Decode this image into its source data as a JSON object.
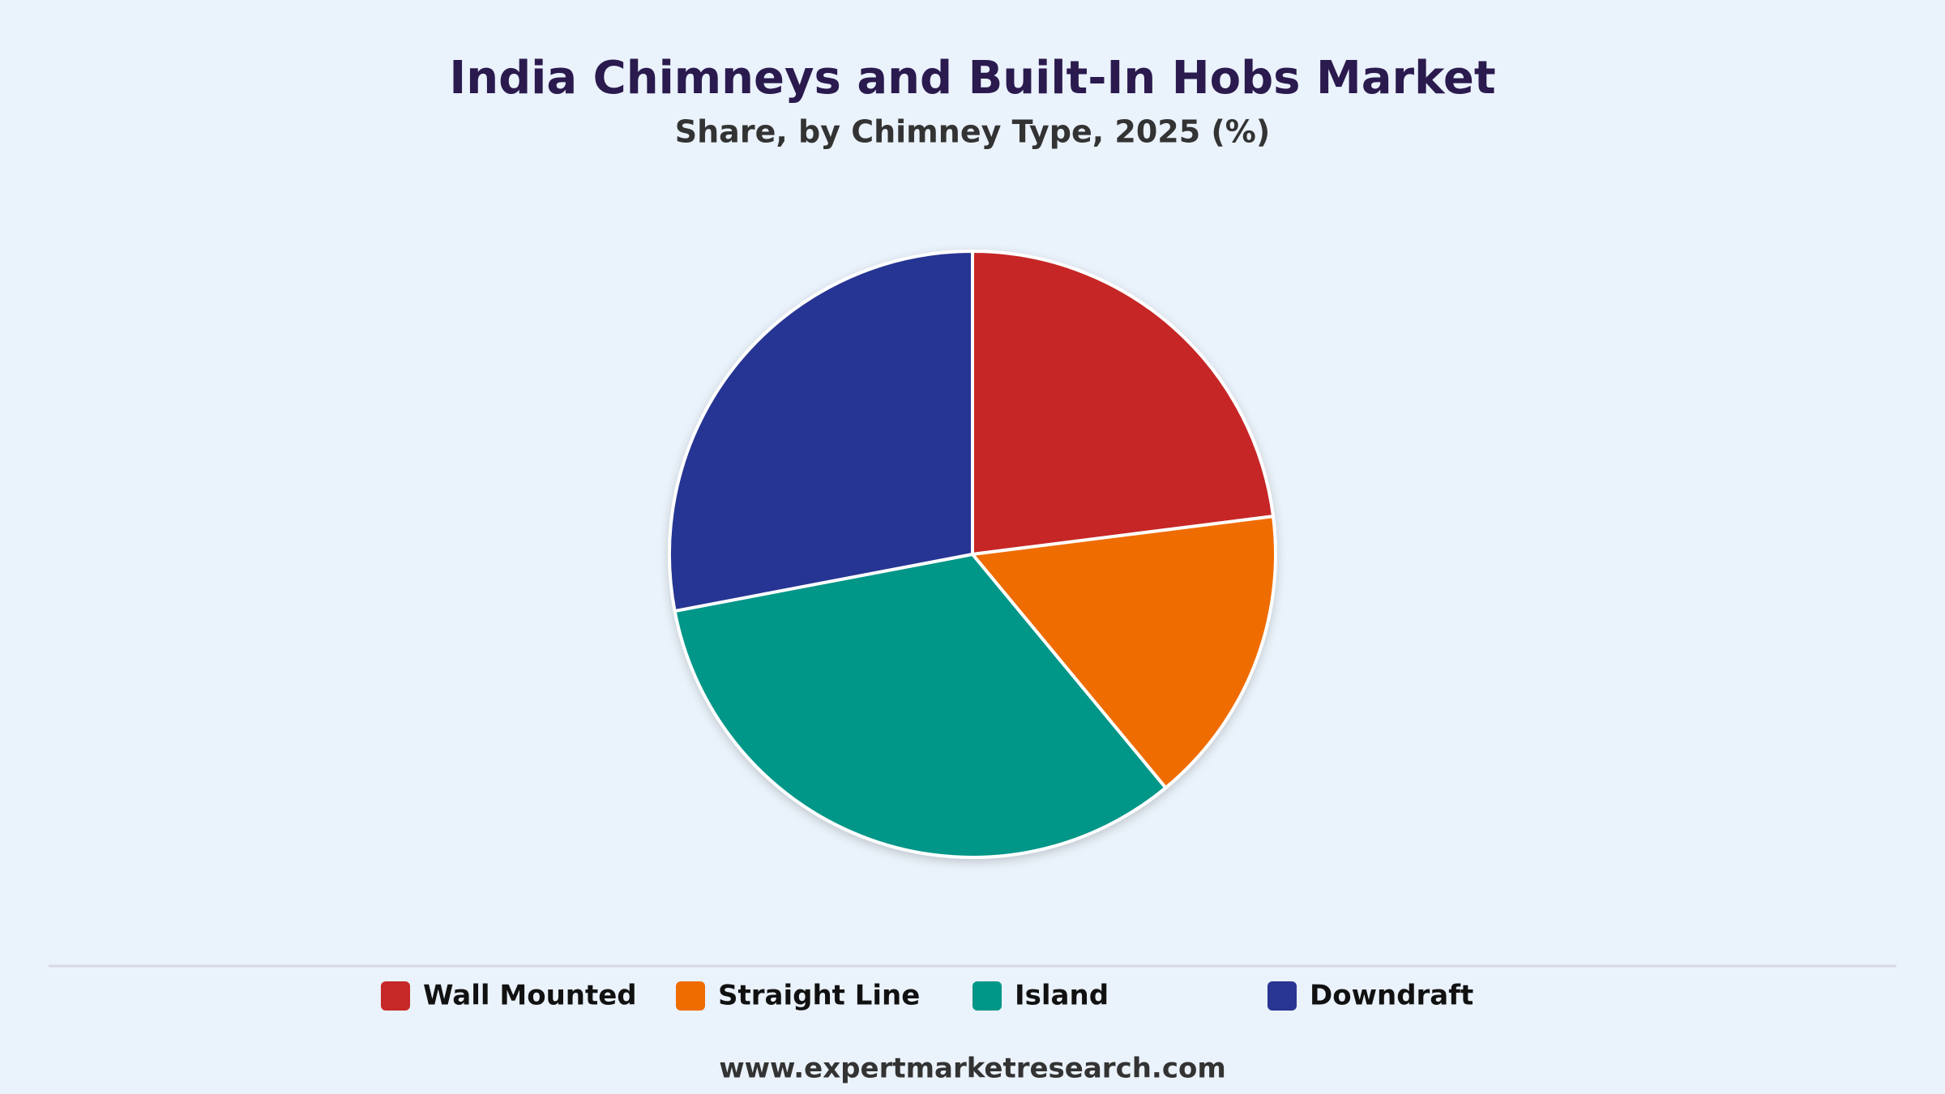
{
  "chart_data": {
    "type": "pie",
    "title": "India Chimneys and Built-In Hobs Market",
    "subtitle": "Share, by Chimney Type, 2025 (%)",
    "categories": [
      "Wall Mounted",
      "Straight Line",
      "Island",
      "Downdraft"
    ],
    "values": [
      23,
      16,
      33,
      28
    ],
    "colors": [
      "#c62828",
      "#ef6c00",
      "#009688",
      "#283593"
    ],
    "legend": "bottom",
    "source": "www.expertmarketresearch.com"
  }
}
